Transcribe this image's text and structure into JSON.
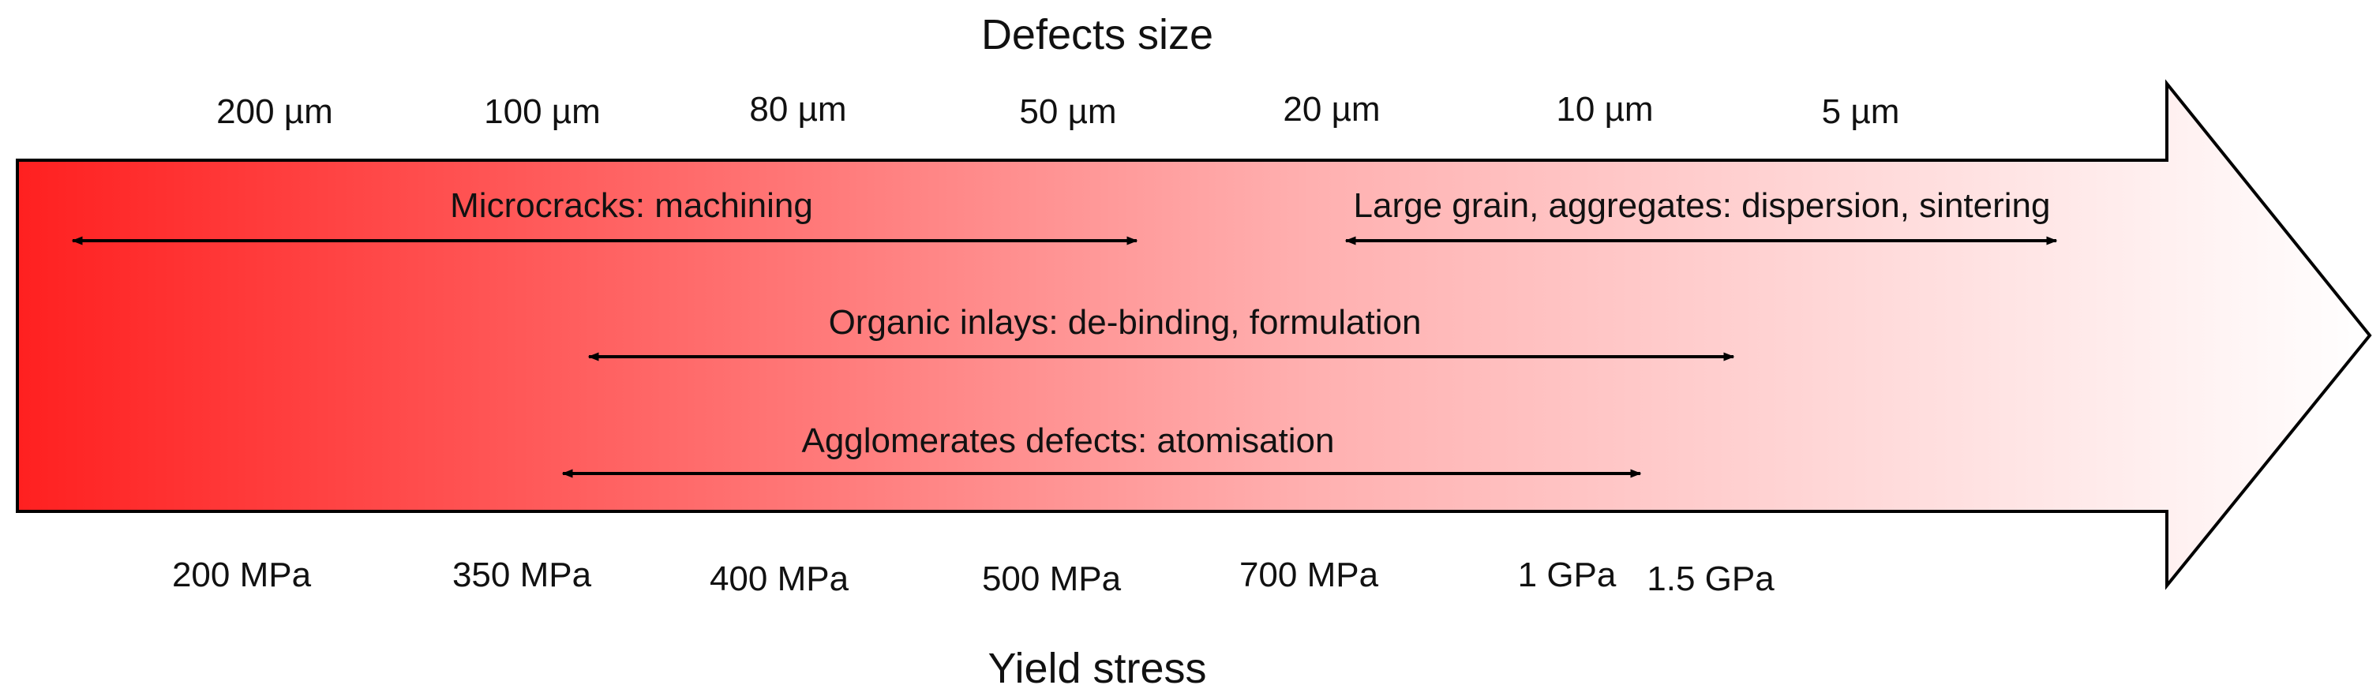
{
  "diagram": {
    "top_axis_title": "Defects size",
    "bottom_axis_title": "Yield stress",
    "defect_sizes": [
      "200 µm",
      "100 µm",
      "80 µm",
      "50 µm",
      "20 µm",
      "10 µm",
      "5 µm"
    ],
    "yield_stresses": [
      "200 MPa",
      "350 MPa",
      "400 MPa",
      "500 MPa",
      "700 MPa",
      "1 GPa",
      "1.5 GPa"
    ],
    "ranges": [
      {
        "label": "Microcracks: machining"
      },
      {
        "label": "Large grain, aggregates: dispersion, sintering"
      },
      {
        "label": "Organic inlays: de-binding, formulation"
      },
      {
        "label": "Agglomerates defects: atomisation"
      }
    ],
    "colors": {
      "gradient_start": "#ff2020",
      "gradient_end": "#ffffff",
      "outline": "#000000"
    }
  }
}
